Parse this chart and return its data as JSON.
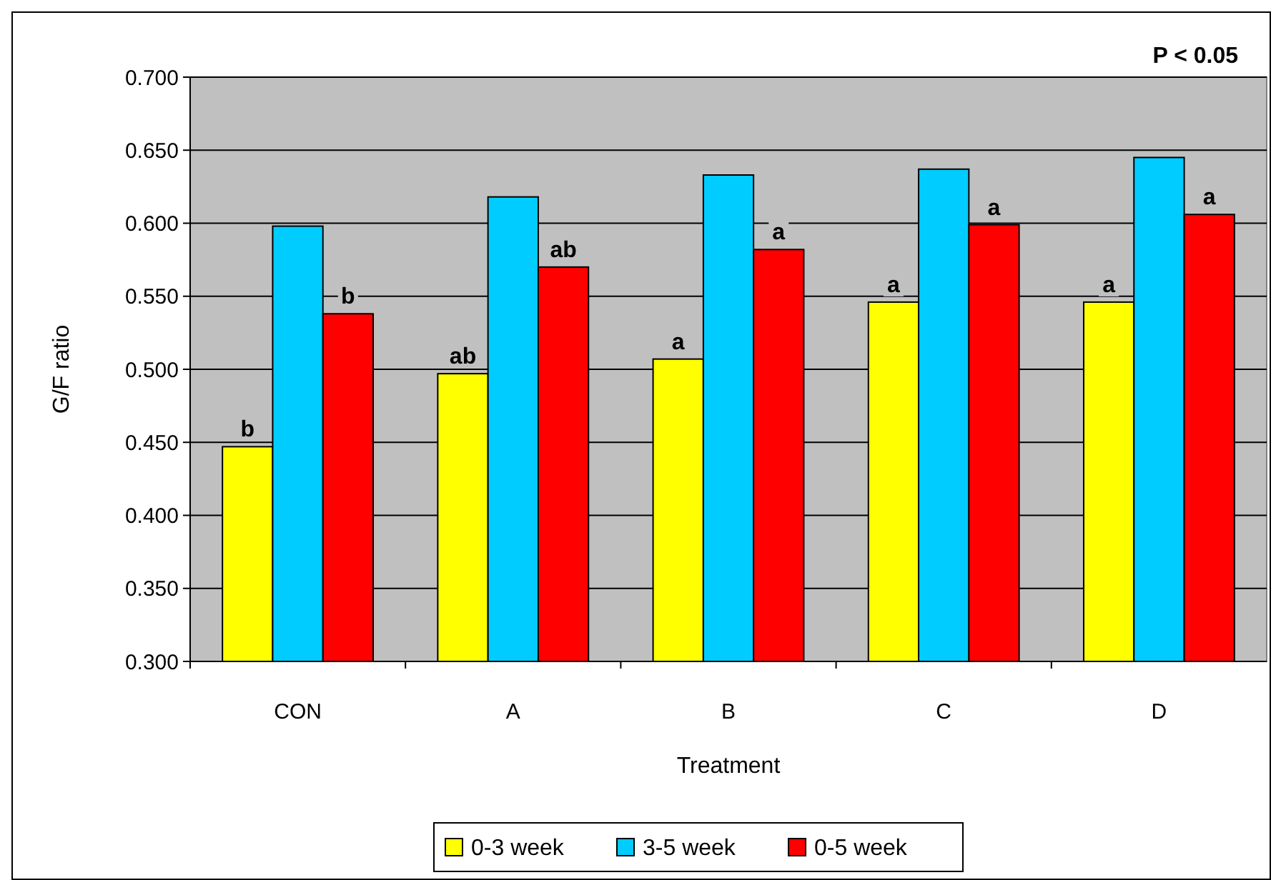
{
  "chart_data": {
    "type": "bar",
    "xlabel": "Treatment",
    "ylabel": "G/F ratio",
    "categories": [
      "CON",
      "A",
      "B",
      "C",
      "D"
    ],
    "series": [
      {
        "name": "0-3 week",
        "color": "#ffff00",
        "values": [
          0.447,
          0.497,
          0.507,
          0.546,
          0.546
        ],
        "value_labels": [
          "b",
          "ab",
          "a",
          "a",
          "a"
        ]
      },
      {
        "name": "3-5 week",
        "color": "#00ccff",
        "values": [
          0.598,
          0.618,
          0.633,
          0.637,
          0.645
        ]
      },
      {
        "name": "0-5 week",
        "color": "#ff0000",
        "values": [
          0.538,
          0.57,
          0.582,
          0.599,
          0.606
        ],
        "value_labels": [
          "b",
          "ab",
          "a",
          "a",
          "a"
        ]
      }
    ],
    "ylim": [
      0.3,
      0.7
    ],
    "yticks": [
      {
        "value": 0.3,
        "label": "0.300"
      },
      {
        "value": 0.35,
        "label": "0.350"
      },
      {
        "value": 0.4,
        "label": "0.400"
      },
      {
        "value": 0.45,
        "label": "0.450"
      },
      {
        "value": 0.5,
        "label": "0.500"
      },
      {
        "value": 0.55,
        "label": "0.550"
      },
      {
        "value": 0.6,
        "label": "0.600"
      },
      {
        "value": 0.65,
        "label": "0.650"
      },
      {
        "value": 0.7,
        "label": "0.700"
      }
    ],
    "grid": "y",
    "legend": "bottom",
    "annotations": [
      "P < 0.05"
    ]
  }
}
